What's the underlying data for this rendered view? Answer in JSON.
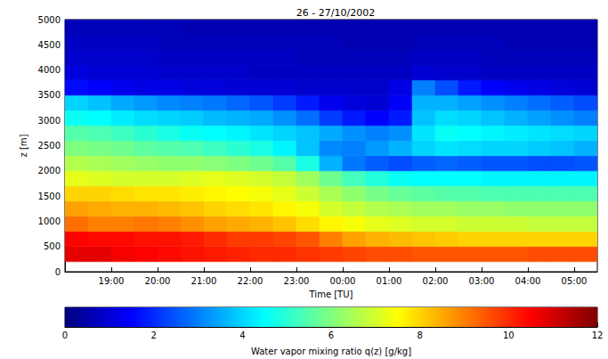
{
  "chart_data": {
    "type": "heatmap",
    "title": "26 - 27/10/2002",
    "x_label": "Time [TU]",
    "y_label": "z [m]",
    "x": [
      18.25,
      18.75,
      19.25,
      19.75,
      20.25,
      20.75,
      21.25,
      21.75,
      22.25,
      22.75,
      23.25,
      23.75,
      24.25,
      24.75,
      25.25,
      25.75,
      26.25,
      26.75,
      27.25,
      27.75,
      28.25,
      28.75,
      29.25
    ],
    "y": [
      350,
      650,
      950,
      1250,
      1550,
      1850,
      2150,
      2450,
      2750,
      3050,
      3350,
      3650,
      3950,
      4250,
      4550,
      4850
    ],
    "z": [
      [
        10.8,
        10.8,
        10.6,
        10.5,
        10.4,
        10.3,
        10.2,
        10.1,
        10.0,
        10.0,
        9.9,
        9.8,
        9.7,
        9.6,
        9.6,
        9.5,
        9.5,
        9.5,
        9.5,
        9.5,
        9.6,
        9.6,
        9.6
      ],
      [
        10.5,
        10.4,
        10.4,
        10.3,
        10.3,
        10.2,
        10.0,
        9.8,
        9.8,
        9.7,
        9.5,
        9.0,
        8.6,
        8.4,
        8.3,
        8.2,
        8.1,
        8.0,
        8.0,
        8.0,
        8.0,
        8.0,
        8.0
      ],
      [
        9.2,
        9.0,
        9.0,
        9.1,
        9.0,
        8.8,
        8.6,
        8.5,
        8.4,
        8.2,
        7.9,
        7.6,
        7.4,
        7.2,
        7.1,
        7.0,
        7.0,
        6.9,
        6.9,
        6.9,
        6.8,
        6.8,
        6.8
      ],
      [
        8.6,
        8.5,
        8.4,
        8.4,
        8.3,
        8.2,
        8.0,
        7.9,
        7.8,
        7.6,
        7.4,
        7.0,
        6.8,
        6.6,
        6.5,
        6.4,
        6.4,
        6.3,
        6.3,
        6.2,
        6.2,
        6.2,
        6.2
      ],
      [
        8.0,
        8.0,
        7.9,
        7.8,
        7.8,
        7.7,
        7.6,
        7.5,
        7.4,
        7.2,
        6.9,
        6.5,
        6.2,
        5.9,
        5.7,
        5.6,
        5.5,
        5.5,
        5.4,
        5.4,
        5.4,
        5.4,
        5.4
      ],
      [
        7.2,
        7.1,
        7.0,
        7.0,
        7.0,
        7.1,
        7.2,
        7.1,
        7.0,
        6.8,
        6.4,
        5.8,
        5.3,
        4.9,
        4.6,
        4.5,
        4.5,
        4.5,
        4.4,
        4.4,
        4.4,
        4.4,
        4.4
      ],
      [
        6.6,
        6.5,
        6.4,
        6.3,
        6.2,
        6.2,
        6.1,
        6.0,
        5.8,
        5.5,
        4.8,
        3.6,
        2.9,
        2.6,
        2.4,
        2.6,
        2.7,
        2.6,
        2.5,
        2.5,
        2.4,
        2.4,
        2.5
      ],
      [
        6.0,
        5.9,
        5.8,
        5.6,
        5.5,
        5.4,
        5.2,
        5.0,
        4.8,
        4.4,
        3.8,
        3.1,
        3.0,
        3.3,
        3.6,
        4.0,
        4.2,
        4.1,
        4.0,
        4.0,
        3.9,
        3.8,
        3.6
      ],
      [
        5.5,
        5.4,
        5.2,
        5.0,
        4.8,
        4.6,
        4.5,
        4.4,
        4.2,
        4.0,
        3.8,
        3.5,
        3.2,
        3.0,
        3.2,
        4.2,
        4.6,
        4.5,
        4.4,
        4.3,
        4.2,
        4.1,
        4.0
      ],
      [
        4.6,
        4.5,
        4.3,
        4.1,
        4.0,
        3.9,
        3.7,
        3.6,
        3.5,
        3.2,
        2.8,
        2.2,
        1.8,
        1.5,
        1.8,
        3.8,
        4.1,
        4.0,
        3.8,
        3.6,
        3.4,
        3.2,
        3.0
      ],
      [
        4.0,
        3.8,
        3.5,
        3.3,
        3.1,
        3.0,
        2.9,
        2.7,
        2.5,
        2.2,
        1.8,
        1.3,
        1.1,
        1.0,
        1.4,
        3.6,
        3.6,
        3.4,
        3.2,
        3.0,
        2.8,
        2.6,
        2.4
      ],
      [
        1.6,
        1.5,
        1.3,
        1.2,
        1.2,
        1.1,
        1.1,
        1.0,
        1.0,
        1.0,
        0.9,
        0.9,
        0.9,
        0.9,
        1.2,
        3.0,
        2.4,
        1.8,
        1.5,
        1.3,
        1.2,
        1.1,
        1.0
      ],
      [
        1.1,
        1.0,
        1.0,
        1.0,
        0.9,
        0.9,
        0.9,
        0.9,
        0.8,
        0.8,
        0.8,
        0.8,
        0.8,
        0.8,
        0.8,
        1.0,
        0.9,
        0.9,
        0.8,
        0.8,
        0.8,
        0.8,
        0.8
      ],
      [
        0.9,
        0.9,
        0.9,
        0.9,
        0.8,
        0.8,
        0.8,
        0.8,
        0.8,
        0.8,
        0.7,
        0.7,
        0.7,
        0.7,
        0.7,
        0.8,
        0.8,
        0.8,
        0.7,
        0.7,
        0.7,
        0.7,
        0.7
      ],
      [
        0.8,
        0.8,
        0.8,
        0.8,
        0.7,
        0.7,
        0.7,
        0.7,
        0.7,
        0.7,
        0.7,
        0.7,
        0.6,
        0.6,
        0.6,
        0.7,
        0.7,
        0.7,
        0.7,
        0.6,
        0.6,
        0.6,
        0.6
      ],
      [
        0.7,
        0.7,
        0.7,
        0.7,
        0.7,
        0.6,
        0.6,
        0.6,
        0.6,
        0.6,
        0.6,
        0.6,
        0.6,
        0.6,
        0.6,
        0.6,
        0.6,
        0.6,
        0.6,
        0.6,
        0.6,
        0.6,
        0.6
      ]
    ],
    "xlim": [
      18,
      29.5
    ],
    "xticks": [
      {
        "value": 19,
        "label": "19:00"
      },
      {
        "value": 20,
        "label": "20:00"
      },
      {
        "value": 21,
        "label": "21:00"
      },
      {
        "value": 22,
        "label": "22:00"
      },
      {
        "value": 23,
        "label": "23:00"
      },
      {
        "value": 24,
        "label": "00:00"
      },
      {
        "value": 25,
        "label": "01:00"
      },
      {
        "value": 26,
        "label": "02:00"
      },
      {
        "value": 27,
        "label": "03:00"
      },
      {
        "value": 28,
        "label": "04:00"
      },
      {
        "value": 29,
        "label": "05:00"
      }
    ],
    "ylim": [
      0,
      5000
    ],
    "yticks": [
      0,
      500,
      1000,
      1500,
      2000,
      2500,
      3000,
      3500,
      4000,
      4500,
      5000
    ],
    "colorbar": {
      "label": "Water vapor mixing ratio q(z) [g/kg]",
      "range": [
        0,
        12
      ],
      "ticks": [
        0,
        2,
        4,
        6,
        8,
        10,
        12
      ]
    },
    "grid": false
  }
}
